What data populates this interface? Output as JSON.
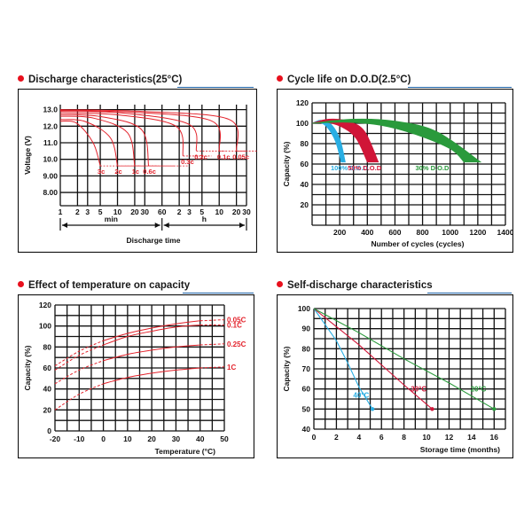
{
  "colors": {
    "accent": "#e8101d",
    "title_underline": "#1c62a8",
    "red_curve": "#e3232c",
    "blue": "#29aee3",
    "crimson": "#d01537",
    "green": "#2a9a3c",
    "grid": "#111111"
  },
  "panels": [
    {
      "title": "Discharge characteristics(25°C)"
    },
    {
      "title": "Cycle life on D.O.D(2.5°C)"
    },
    {
      "title": "Effect of temperature on capacity"
    },
    {
      "title": "Self-discharge characteristics"
    }
  ],
  "chart_data": [
    {
      "type": "line",
      "title": "Discharge characteristics(25°C)",
      "ylabel": "Voltage (V)",
      "xlabel": "Discharge time",
      "y_ticks": [
        "13.0",
        "12.0",
        "11.0",
        "10.0",
        "9.00",
        "8.00"
      ],
      "ylim": [
        7.2,
        13.3
      ],
      "x_ticks": [
        "1",
        "2",
        "3",
        "5",
        "10",
        "20",
        "30",
        "60",
        "2",
        "3",
        "5",
        "10",
        "20",
        "30"
      ],
      "x_unit_labels": [
        "min",
        "h"
      ],
      "x_scale": "log",
      "series": [
        {
          "name": "3c",
          "end_voltage": 9.6,
          "x_end": 5,
          "y": [
            12.3,
            11.0,
            9.6
          ]
        },
        {
          "name": "2c",
          "end_voltage": 9.6,
          "x_end": 10,
          "y": [
            12.4,
            11.3,
            9.6
          ]
        },
        {
          "name": "1c",
          "end_voltage": 9.6,
          "x_end": 20,
          "y": [
            12.6,
            11.6,
            9.6
          ]
        },
        {
          "name": "0.6c",
          "end_voltage": 9.6,
          "x_end": 35,
          "y": [
            12.7,
            11.8,
            9.6
          ]
        },
        {
          "name": "0.3c",
          "end_voltage": 10.2,
          "x_end": 140,
          "y": [
            12.8,
            12.0,
            10.2
          ]
        },
        {
          "name": "0.2c",
          "end_voltage": 10.5,
          "x_end": 240,
          "y": [
            12.9,
            12.1,
            10.5
          ]
        },
        {
          "name": "0.1c",
          "end_voltage": 10.5,
          "x_end": 600,
          "y": [
            12.95,
            12.3,
            10.5
          ]
        },
        {
          "name": "0.05c",
          "end_voltage": 10.5,
          "x_end": 1200,
          "y": [
            13.0,
            12.4,
            10.5
          ]
        }
      ]
    },
    {
      "type": "area",
      "title": "Cycle life on D.O.D(2.5°C)",
      "ylabel": "Capacity (%)",
      "xlabel": "Number of cycles (cycles)",
      "y_ticks": [
        "120",
        "100",
        "80",
        "60",
        "40",
        "20"
      ],
      "ylim": [
        0,
        120
      ],
      "x_ticks": [
        "200",
        "400",
        "600",
        "800",
        "1000",
        "1200",
        "1400"
      ],
      "xlim": [
        0,
        1400
      ],
      "series": [
        {
          "name": "100% D.O.D",
          "color": "blue",
          "upper": [
            [
              0,
              100
            ],
            [
              60,
              103
            ],
            [
              130,
              100
            ],
            [
              200,
              85
            ],
            [
              240,
              62
            ]
          ],
          "lower": [
            [
              0,
              100
            ],
            [
              50,
              101
            ],
            [
              110,
              96
            ],
            [
              170,
              82
            ],
            [
              210,
              62
            ]
          ]
        },
        {
          "name": "50% D.O.D",
          "color": "crimson",
          "upper": [
            [
              0,
              100
            ],
            [
              120,
              104
            ],
            [
              260,
              102
            ],
            [
              380,
              92
            ],
            [
              480,
              62
            ]
          ],
          "lower": [
            [
              0,
              100
            ],
            [
              100,
              101
            ],
            [
              220,
              96
            ],
            [
              320,
              85
            ],
            [
              400,
              62
            ]
          ]
        },
        {
          "name": "30% D.O.D",
          "color": "green",
          "upper": [
            [
              0,
              100
            ],
            [
              300,
              104
            ],
            [
              600,
              102
            ],
            [
              900,
              92
            ],
            [
              1220,
              62
            ]
          ],
          "lower": [
            [
              0,
              100
            ],
            [
              250,
              101
            ],
            [
              500,
              98
            ],
            [
              750,
              89
            ],
            [
              1000,
              75
            ],
            [
              1100,
              62
            ]
          ]
        }
      ]
    },
    {
      "type": "line",
      "title": "Effect of temperature on capacity",
      "ylabel": "Capacity (%)",
      "xlabel": "Temperature (°C)",
      "y_ticks": [
        "120",
        "100",
        "80",
        "60",
        "40",
        "20",
        "0"
      ],
      "ylim": [
        0,
        120
      ],
      "x_ticks": [
        "-20",
        "-10",
        "0",
        "10",
        "20",
        "30",
        "40",
        "50"
      ],
      "xlim": [
        -20,
        50
      ],
      "series": [
        {
          "name": "0.05C",
          "x": [
            -20,
            -10,
            0,
            10,
            20,
            30,
            40,
            50
          ],
          "y": [
            62,
            76,
            86,
            93,
            98,
            102,
            105,
            106
          ]
        },
        {
          "name": "0.1C",
          "x": [
            -20,
            -10,
            0,
            10,
            20,
            30,
            40,
            50
          ],
          "y": [
            58,
            72,
            82,
            90,
            95,
            99,
            101,
            101
          ]
        },
        {
          "name": "0.25C",
          "x": [
            -20,
            -10,
            0,
            10,
            20,
            30,
            40,
            50
          ],
          "y": [
            45,
            58,
            67,
            73,
            77,
            80,
            82,
            83
          ]
        },
        {
          "name": "1C",
          "x": [
            -20,
            -10,
            0,
            10,
            20,
            30,
            40,
            50
          ],
          "y": [
            20,
            35,
            45,
            51,
            55,
            58,
            60,
            61
          ]
        }
      ]
    },
    {
      "type": "line",
      "title": "Self-discharge characteristics",
      "ylabel": "Capacity (%)",
      "xlabel": "Storage time (months)",
      "y_ticks": [
        "100",
        "90",
        "80",
        "70",
        "60",
        "50",
        "40"
      ],
      "ylim": [
        40,
        100
      ],
      "x_ticks": [
        "0",
        "2",
        "4",
        "6",
        "8",
        "10",
        "12",
        "14",
        "16"
      ],
      "xlim": [
        0,
        17
      ],
      "series": [
        {
          "name": "40°C",
          "color": "blue",
          "x": [
            0,
            1,
            2,
            3,
            4,
            5.2
          ],
          "y": [
            100,
            92,
            84,
            73,
            61,
            50
          ]
        },
        {
          "name": "30°C",
          "color": "crimson",
          "x": [
            0,
            2,
            4,
            6,
            8,
            10.5
          ],
          "y": [
            100,
            91,
            82,
            72,
            62,
            50
          ]
        },
        {
          "name": "20°C",
          "color": "green",
          "x": [
            0,
            4,
            8,
            12,
            16
          ],
          "y": [
            100,
            88,
            75,
            63,
            50
          ]
        }
      ]
    }
  ]
}
